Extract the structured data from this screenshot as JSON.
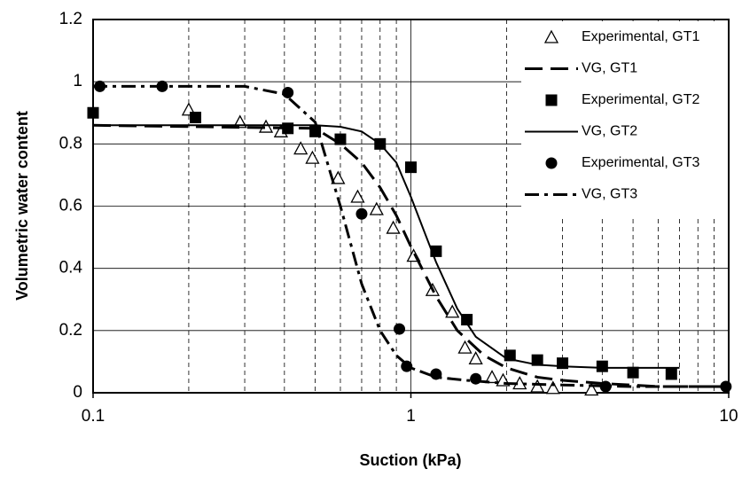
{
  "chart_data": {
    "type": "scatter-line",
    "x_label": "Suction (kPa)",
    "y_label": "Volumetric water content",
    "xscale": "log",
    "xlim": [
      0.1,
      10
    ],
    "xticks": [
      0.1,
      1,
      10
    ],
    "xminor_grid": [
      0.2,
      0.3,
      0.4,
      0.5,
      0.6,
      0.7,
      0.8,
      0.9,
      2,
      3,
      4,
      5,
      6,
      7,
      8,
      9
    ],
    "ylim": [
      0,
      1.2
    ],
    "yticks": [
      0,
      0.2,
      0.4,
      0.6,
      0.8,
      1,
      1.2
    ],
    "grid": true,
    "legend": "upper right",
    "series": [
      {
        "name": "Experimental, GT1",
        "kind": "marker",
        "marker": "triangle-open",
        "color": "#000000",
        "x": [
          0.2,
          0.29,
          0.35,
          0.39,
          0.45,
          0.49,
          0.59,
          0.68,
          0.78,
          0.88,
          1.02,
          1.17,
          1.35,
          1.48,
          1.6,
          1.8,
          1.95,
          2.2,
          2.5,
          2.8,
          3.7
        ],
        "values": [
          0.91,
          0.87,
          0.855,
          0.84,
          0.785,
          0.755,
          0.69,
          0.63,
          0.59,
          0.53,
          0.44,
          0.33,
          0.26,
          0.145,
          0.11,
          0.05,
          0.04,
          0.03,
          0.02,
          0.015,
          0.01
        ]
      },
      {
        "name": "VG, GT1",
        "kind": "line",
        "line_style": "dashed",
        "color": "#000000",
        "x": [
          0.1,
          0.5,
          0.6,
          0.7,
          0.8,
          0.9,
          1.0,
          1.2,
          1.4,
          1.7,
          2,
          2.5,
          3,
          4,
          6,
          10
        ],
        "values": [
          0.86,
          0.85,
          0.8,
          0.74,
          0.66,
          0.57,
          0.47,
          0.31,
          0.2,
          0.12,
          0.08,
          0.05,
          0.04,
          0.03,
          0.02,
          0.02
        ]
      },
      {
        "name": "Experimental, GT2",
        "kind": "marker",
        "marker": "square",
        "color": "#000000",
        "x": [
          0.1,
          0.21,
          0.41,
          0.5,
          0.6,
          0.8,
          1.0,
          1.2,
          1.5,
          2.05,
          2.5,
          3,
          4,
          5,
          6.6
        ],
        "values": [
          0.9,
          0.885,
          0.85,
          0.84,
          0.815,
          0.8,
          0.725,
          0.455,
          0.235,
          0.12,
          0.105,
          0.095,
          0.085,
          0.065,
          0.06
        ]
      },
      {
        "name": "VG, GT2",
        "kind": "line",
        "line_style": "solid",
        "color": "#000000",
        "x": [
          0.1,
          0.5,
          0.6,
          0.7,
          0.8,
          0.9,
          1.0,
          1.1,
          1.2,
          1.4,
          1.6,
          2,
          2.5,
          3,
          4,
          7
        ],
        "values": [
          0.86,
          0.86,
          0.855,
          0.84,
          0.8,
          0.74,
          0.63,
          0.52,
          0.42,
          0.27,
          0.18,
          0.11,
          0.09,
          0.085,
          0.08,
          0.08
        ]
      },
      {
        "name": "Experimental, GT3",
        "kind": "marker",
        "marker": "circle",
        "color": "#000000",
        "x": [
          0.105,
          0.165,
          0.41,
          0.7,
          0.92,
          0.97,
          1.2,
          1.6,
          4.1,
          9.8
        ],
        "values": [
          0.985,
          0.985,
          0.965,
          0.575,
          0.205,
          0.085,
          0.06,
          0.045,
          0.02,
          0.02
        ]
      },
      {
        "name": "VG, GT3",
        "kind": "line",
        "line_style": "dash-dot",
        "color": "#000000",
        "x": [
          0.1,
          0.3,
          0.4,
          0.5,
          0.6,
          0.7,
          0.8,
          0.9,
          1.0,
          1.2,
          1.5,
          2,
          3,
          5,
          10
        ],
        "values": [
          0.985,
          0.985,
          0.96,
          0.87,
          0.6,
          0.35,
          0.2,
          0.12,
          0.08,
          0.05,
          0.04,
          0.03,
          0.025,
          0.02,
          0.02
        ]
      }
    ]
  }
}
